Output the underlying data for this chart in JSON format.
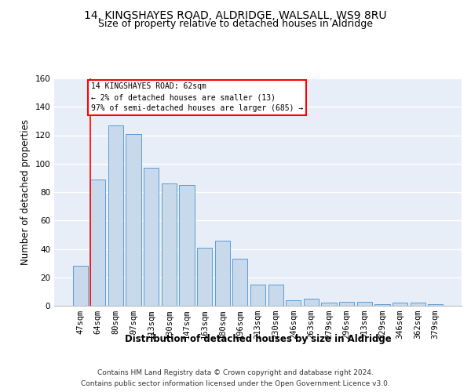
{
  "title_line1": "14, KINGSHAYES ROAD, ALDRIDGE, WALSALL, WS9 8RU",
  "title_line2": "Size of property relative to detached houses in Aldridge",
  "xlabel": "Distribution of detached houses by size in Aldridge",
  "ylabel": "Number of detached properties",
  "categories": [
    "47sqm",
    "64sqm",
    "80sqm",
    "97sqm",
    "113sqm",
    "130sqm",
    "147sqm",
    "163sqm",
    "180sqm",
    "196sqm",
    "213sqm",
    "230sqm",
    "246sqm",
    "263sqm",
    "279sqm",
    "296sqm",
    "313sqm",
    "329sqm",
    "346sqm",
    "362sqm",
    "379sqm"
  ],
  "values": [
    28,
    89,
    127,
    121,
    97,
    86,
    85,
    41,
    46,
    33,
    15,
    15,
    4,
    5,
    2,
    3,
    3,
    1,
    2,
    2,
    1
  ],
  "bar_color": "#c9d9ec",
  "bar_edge_color": "#5b9bd5",
  "ylim": [
    0,
    160
  ],
  "yticks": [
    0,
    20,
    40,
    60,
    80,
    100,
    120,
    140,
    160
  ],
  "annotation_line1": "14 KINGSHAYES ROAD: 62sqm",
  "annotation_line2": "← 2% of detached houses are smaller (13)",
  "annotation_line3": "97% of semi-detached houses are larger (685) →",
  "footer_line1": "Contains HM Land Registry data © Crown copyright and database right 2024.",
  "footer_line2": "Contains public sector information licensed under the Open Government Licence v3.0.",
  "background_color": "#e8eef7",
  "grid_color": "#ffffff",
  "title_fontsize": 10,
  "subtitle_fontsize": 9,
  "axis_label_fontsize": 8.5,
  "tick_fontsize": 7.5,
  "footer_fontsize": 6.5
}
